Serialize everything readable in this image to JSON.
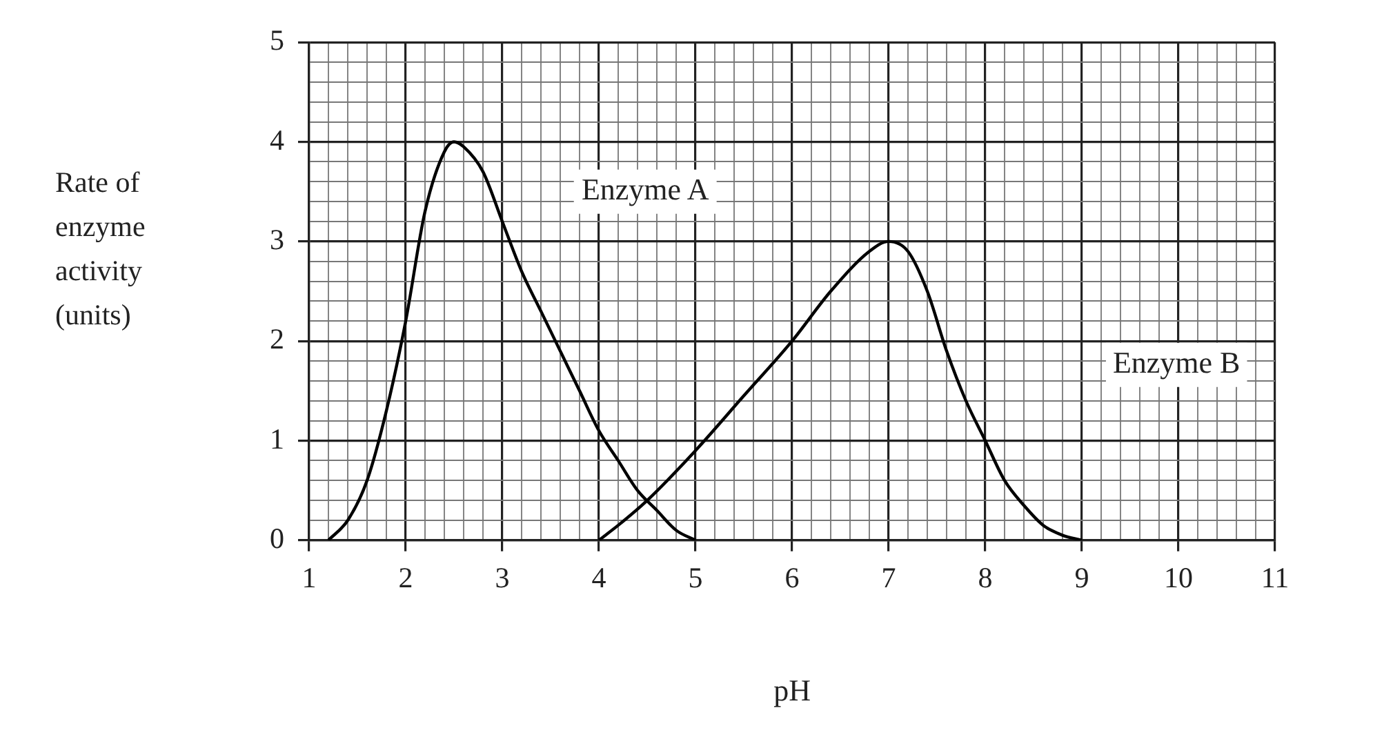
{
  "chart_data": {
    "type": "line",
    "xlabel": "pH",
    "ylabel": "Rate of enzyme activity (units)",
    "xlim": [
      1,
      11
    ],
    "ylim": [
      0,
      5
    ],
    "xticks": [
      1,
      {
        "value": 1.2,
        "label": null
      },
      {
        "value": 1.4,
        "label": null
      },
      {
        "value": 1.6,
        "label": null
      },
      {
        "value": 1.8,
        "label": null
      },
      2,
      {
        "value": 2.2,
        "label": null
      },
      {
        "value": 2.4,
        "label": null
      },
      {
        "value": 2.6,
        "label": null
      },
      {
        "value": 2.8,
        "label": null
      },
      3,
      {
        "value": 3.2,
        "label": null
      },
      {
        "value": 3.4,
        "label": null
      },
      {
        "value": 3.6,
        "label": null
      },
      {
        "value": 3.8,
        "label": null
      },
      4,
      {
        "value": 4.2,
        "label": null
      },
      {
        "value": 4.4,
        "label": null
      },
      {
        "value": 4.6,
        "label": null
      },
      {
        "value": 4.8,
        "label": null
      },
      5,
      {
        "value": 5.2,
        "label": null
      },
      {
        "value": 5.4,
        "label": null
      },
      {
        "value": 5.6,
        "label": null
      },
      {
        "value": 5.8,
        "label": null
      },
      6,
      {
        "value": 6.2,
        "label": null
      },
      {
        "value": 6.4,
        "label": null
      },
      {
        "value": 6.6,
        "label": null
      },
      {
        "value": 6.8,
        "label": null
      },
      7,
      {
        "value": 7.2,
        "label": null
      },
      {
        "value": 7.4,
        "label": null
      },
      {
        "value": 7.6,
        "label": null
      },
      {
        "value": 7.8,
        "label": null
      },
      8,
      {
        "value": 8.2,
        "label": null
      },
      {
        "value": 8.4,
        "label": null
      },
      {
        "value": 8.6,
        "label": null
      },
      {
        "value": 8.8,
        "label": null
      },
      9,
      {
        "value": 9.2,
        "label": null
      },
      {
        "value": 9.4,
        "label": null
      },
      {
        "value": 9.6,
        "label": null
      },
      {
        "value": 9.8,
        "label": null
      },
      10,
      {
        "value": 10.2,
        "label": null
      },
      {
        "value": 10.4,
        "label": null
      },
      {
        "value": 10.6,
        "label": null
      },
      {
        "value": 10.8,
        "label": null
      },
      11
    ],
    "yticks": [
      0,
      {
        "value": 0.2,
        "label": null
      },
      {
        "value": 0.4,
        "label": null
      },
      {
        "value": 0.6,
        "label": null
      },
      {
        "value": 0.8,
        "label": null
      },
      1,
      {
        "value": 1.2,
        "label": null
      },
      {
        "value": 1.4,
        "label": null
      },
      {
        "value": 1.6,
        "label": null
      },
      {
        "value": 1.8,
        "label": null
      },
      2,
      {
        "value": 2.2,
        "label": null
      },
      {
        "value": 2.4,
        "label": null
      },
      {
        "value": 2.6,
        "label": null
      },
      {
        "value": 2.8,
        "label": null
      },
      3,
      {
        "value": 3.2,
        "label": null
      },
      {
        "value": 3.4,
        "label": null
      },
      {
        "value": 3.6,
        "label": null
      },
      {
        "value": 3.8,
        "label": null
      },
      4,
      {
        "value": 4.2,
        "label": null
      },
      {
        "value": 4.4,
        "label": null
      },
      {
        "value": 4.6,
        "label": null
      },
      {
        "value": 4.8,
        "label": null
      },
      5
    ],
    "grid": true,
    "marker": "none",
    "line_style": "solid",
    "series": [
      {
        "color": "#000000",
        "x": [
          1.2,
          1.4,
          1.6,
          1.8,
          2,
          2.2,
          2.4,
          2.5,
          2.6,
          2.8,
          3,
          3.2,
          3.4,
          3.6,
          3.8,
          4,
          4.2,
          4.4,
          4.6,
          4.8,
          5
        ],
        "values": [
          0,
          0.2,
          0.6,
          1.3,
          2.2,
          3.3,
          3.9,
          4,
          3.95,
          3.7,
          3.2,
          2.7,
          2.3,
          1.9,
          1.5,
          1.1,
          0.8,
          0.5,
          0.3,
          0.1,
          0
        ]
      },
      {
        "color": "#000000",
        "x": [
          4,
          4.2,
          4.5,
          5,
          5.5,
          6,
          6.4,
          6.8,
          7,
          7.2,
          7.4,
          7.6,
          7.8,
          8,
          8.2,
          8.4,
          8.6,
          8.8,
          9
        ],
        "values": [
          0,
          0.15,
          0.4,
          0.9,
          1.45,
          2,
          2.5,
          2.9,
          3,
          2.9,
          2.5,
          1.9,
          1.4,
          1,
          0.6,
          0.35,
          0.15,
          0.05,
          0
        ]
      }
    ],
    "annotations": [
      "Enzyme A",
      "Enzyme B"
    ]
  }
}
